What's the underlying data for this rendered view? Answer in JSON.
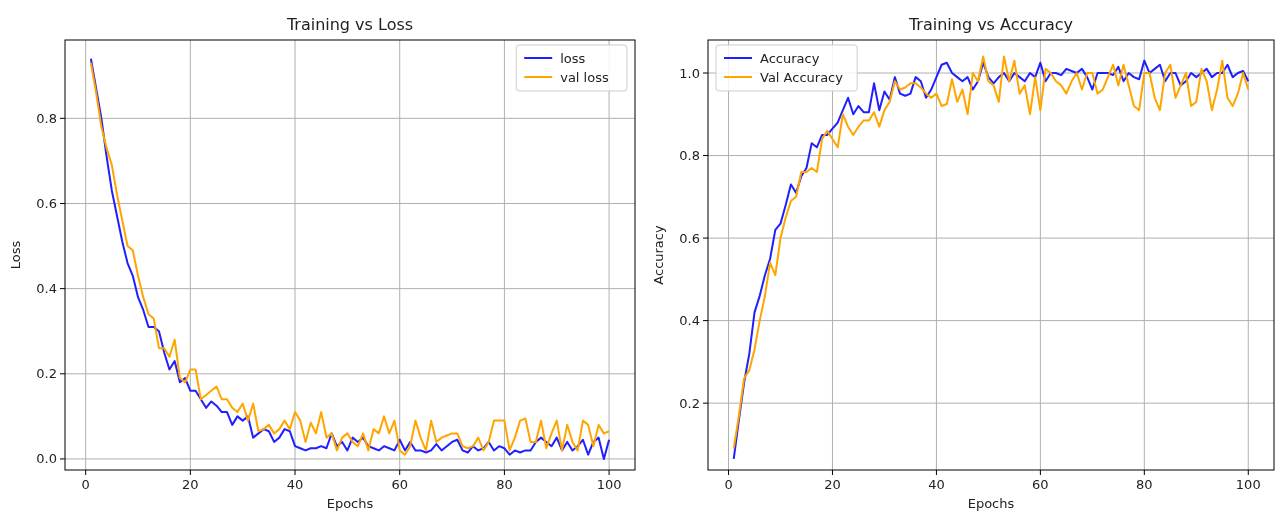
{
  "chart_data": [
    {
      "type": "line",
      "title": "Training vs Loss",
      "xlabel": "Epochs",
      "ylabel": "Loss",
      "xlim": [
        -3.95,
        104.95
      ],
      "xticks": [
        0,
        20,
        40,
        60,
        80,
        100
      ],
      "ylim": [
        -0.026,
        0.984
      ],
      "yticks": [
        {
          "value": 0,
          "label": "0.0"
        },
        0.2,
        0.4,
        0.6,
        0.8
      ],
      "grid": true,
      "legend": "top right",
      "x": [
        1,
        2,
        3,
        4,
        5,
        6,
        7,
        8,
        9,
        10,
        11,
        12,
        13,
        14,
        15,
        16,
        17,
        18,
        19,
        20,
        21,
        22,
        23,
        24,
        25,
        26,
        27,
        28,
        29,
        30,
        31,
        32,
        33,
        34,
        35,
        36,
        37,
        38,
        39,
        40,
        41,
        42,
        43,
        44,
        45,
        46,
        47,
        48,
        49,
        50,
        51,
        52,
        53,
        54,
        55,
        56,
        57,
        58,
        59,
        60,
        61,
        62,
        63,
        64,
        65,
        66,
        67,
        68,
        69,
        70,
        71,
        72,
        73,
        74,
        75,
        76,
        77,
        78,
        79,
        80,
        81,
        82,
        83,
        84,
        85,
        86,
        87,
        88,
        89,
        90,
        91,
        92,
        93,
        94,
        95,
        96,
        97,
        98,
        99,
        100
      ],
      "series": [
        {
          "name": "loss",
          "color": "#1f1fff",
          "values": [
            0.94,
            0.87,
            0.8,
            0.71,
            0.63,
            0.57,
            0.51,
            0.46,
            0.43,
            0.38,
            0.35,
            0.31,
            0.31,
            0.3,
            0.25,
            0.21,
            0.23,
            0.18,
            0.19,
            0.16,
            0.16,
            0.14,
            0.12,
            0.135,
            0.125,
            0.11,
            0.11,
            0.08,
            0.1,
            0.09,
            0.1,
            0.05,
            0.06,
            0.07,
            0.065,
            0.04,
            0.05,
            0.07,
            0.065,
            0.03,
            0.025,
            0.02,
            0.025,
            0.025,
            0.03,
            0.025,
            0.06,
            0.03,
            0.04,
            0.02,
            0.05,
            0.04,
            0.05,
            0.03,
            0.025,
            0.02,
            0.03,
            0.025,
            0.02,
            0.045,
            0.02,
            0.04,
            0.02,
            0.02,
            0.015,
            0.02,
            0.035,
            0.02,
            0.03,
            0.04,
            0.045,
            0.02,
            0.015,
            0.03,
            0.02,
            0.025,
            0.04,
            0.02,
            0.03,
            0.025,
            0.01,
            0.02,
            0.015,
            0.02,
            0.02,
            0.04,
            0.05,
            0.04,
            0.03,
            0.05,
            0.02,
            0.04,
            0.02,
            0.03,
            0.045,
            0.01,
            0.04,
            0.05,
            0.0,
            0.045
          ]
        },
        {
          "name": "val loss",
          "color": "#ffa500",
          "values": [
            0.93,
            0.86,
            0.78,
            0.73,
            0.69,
            0.62,
            0.56,
            0.5,
            0.49,
            0.43,
            0.38,
            0.34,
            0.33,
            0.26,
            0.26,
            0.24,
            0.28,
            0.19,
            0.18,
            0.21,
            0.21,
            0.14,
            0.15,
            0.16,
            0.17,
            0.14,
            0.14,
            0.12,
            0.11,
            0.13,
            0.09,
            0.13,
            0.065,
            0.07,
            0.08,
            0.06,
            0.07,
            0.09,
            0.07,
            0.11,
            0.09,
            0.04,
            0.085,
            0.06,
            0.11,
            0.05,
            0.06,
            0.02,
            0.05,
            0.06,
            0.04,
            0.03,
            0.06,
            0.02,
            0.07,
            0.06,
            0.1,
            0.06,
            0.09,
            0.02,
            0.01,
            0.03,
            0.09,
            0.05,
            0.02,
            0.09,
            0.04,
            0.05,
            0.055,
            0.06,
            0.06,
            0.03,
            0.025,
            0.03,
            0.05,
            0.02,
            0.04,
            0.09,
            0.09,
            0.09,
            0.02,
            0.05,
            0.09,
            0.095,
            0.04,
            0.04,
            0.09,
            0.025,
            0.06,
            0.09,
            0.02,
            0.08,
            0.04,
            0.02,
            0.09,
            0.08,
            0.03,
            0.08,
            0.06,
            0.065
          ]
        }
      ]
    },
    {
      "type": "line",
      "title": "Training vs Accuracy",
      "xlabel": "Epochs",
      "ylabel": "Accuracy",
      "xlim": [
        -3.95,
        104.95
      ],
      "xticks": [
        0,
        20,
        40,
        60,
        80,
        100
      ],
      "ylim": [
        0.038,
        1.08
      ],
      "yticks": [
        0.2,
        0.4,
        0.6,
        0.8,
        {
          "value": 1,
          "label": "1.0"
        }
      ],
      "grid": true,
      "legend": "top left",
      "x": [
        1,
        2,
        3,
        4,
        5,
        6,
        7,
        8,
        9,
        10,
        11,
        12,
        13,
        14,
        15,
        16,
        17,
        18,
        19,
        20,
        21,
        22,
        23,
        24,
        25,
        26,
        27,
        28,
        29,
        30,
        31,
        32,
        33,
        34,
        35,
        36,
        37,
        38,
        39,
        40,
        41,
        42,
        43,
        44,
        45,
        46,
        47,
        48,
        49,
        50,
        51,
        52,
        53,
        54,
        55,
        56,
        57,
        58,
        59,
        60,
        61,
        62,
        63,
        64,
        65,
        66,
        67,
        68,
        69,
        70,
        71,
        72,
        73,
        74,
        75,
        76,
        77,
        78,
        79,
        80,
        81,
        82,
        83,
        84,
        85,
        86,
        87,
        88,
        89,
        90,
        91,
        92,
        93,
        94,
        95,
        96,
        97,
        98,
        99,
        100
      ],
      "series": [
        {
          "name": "Accuracy",
          "color": "#1f1fff",
          "values": [
            0.065,
            0.16,
            0.25,
            0.32,
            0.42,
            0.46,
            0.51,
            0.55,
            0.62,
            0.635,
            0.68,
            0.73,
            0.71,
            0.75,
            0.77,
            0.83,
            0.82,
            0.85,
            0.85,
            0.865,
            0.88,
            0.91,
            0.94,
            0.9,
            0.92,
            0.905,
            0.905,
            0.975,
            0.91,
            0.955,
            0.935,
            0.99,
            0.95,
            0.945,
            0.95,
            0.99,
            0.98,
            0.94,
            0.96,
            0.99,
            1.02,
            1.025,
            1.0,
            0.99,
            0.98,
            0.99,
            0.96,
            0.98,
            1.025,
            0.99,
            0.975,
            0.99,
            1.0,
            0.98,
            1.0,
            0.99,
            0.98,
            1.0,
            0.99,
            1.025,
            0.98,
            1.0,
            1.0,
            0.995,
            1.01,
            1.005,
            1.0,
            1.01,
            0.99,
            0.96,
            1.0,
            1.0,
            1.0,
            0.995,
            1.015,
            0.98,
            1.0,
            0.99,
            0.985,
            1.03,
            1.0,
            1.01,
            1.02,
            0.98,
            1.0,
            1.0,
            0.97,
            0.98,
            1.0,
            0.99,
            1.0,
            1.01,
            0.99,
            1.0,
            1.0,
            1.02,
            0.99,
            1.0,
            1.005,
            0.98
          ]
        },
        {
          "name": "Val Accuracy",
          "color": "#ffa500",
          "values": [
            0.09,
            0.17,
            0.26,
            0.28,
            0.33,
            0.4,
            0.46,
            0.54,
            0.51,
            0.6,
            0.65,
            0.69,
            0.7,
            0.76,
            0.76,
            0.77,
            0.76,
            0.84,
            0.86,
            0.84,
            0.82,
            0.9,
            0.87,
            0.85,
            0.87,
            0.885,
            0.885,
            0.905,
            0.87,
            0.91,
            0.93,
            0.98,
            0.96,
            0.965,
            0.975,
            0.975,
            0.965,
            0.95,
            0.94,
            0.95,
            0.92,
            0.925,
            0.985,
            0.93,
            0.96,
            0.9,
            1.0,
            0.98,
            1.04,
            0.98,
            0.97,
            0.93,
            1.04,
            0.98,
            1.03,
            0.95,
            0.97,
            0.9,
            0.99,
            0.91,
            1.01,
            1.0,
            0.98,
            0.97,
            0.95,
            0.98,
            1.0,
            0.96,
            1.0,
            1.0,
            0.95,
            0.96,
            0.99,
            1.02,
            0.97,
            1.02,
            0.97,
            0.92,
            0.91,
            1.0,
            1.0,
            0.94,
            0.91,
            1.0,
            1.02,
            0.94,
            0.97,
            1.0,
            0.92,
            0.93,
            1.01,
            0.98,
            0.91,
            0.96,
            1.03,
            0.94,
            0.92,
            0.95,
            1.0,
            0.96
          ]
        }
      ]
    }
  ]
}
